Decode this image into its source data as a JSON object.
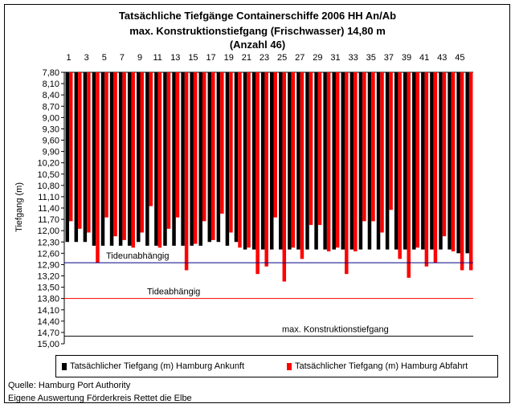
{
  "chart_data": {
    "type": "bar",
    "title_lines": [
      "Tatsächliche Tiefgänge Containerschiffe 2006 HH An/Ab",
      "max. Konstruktionstiefgang (Frischwasser) 14,80 m",
      "(Anzahl 46)"
    ],
    "ylabel": "Tiefgang (m)",
    "ylim": [
      7.8,
      15.0
    ],
    "y_inverted": true,
    "yticks": [
      "7,80",
      "8,10",
      "8,40",
      "8,70",
      "9,00",
      "9,30",
      "9,60",
      "9,90",
      "10,20",
      "10,50",
      "10,80",
      "11,10",
      "11,40",
      "11,70",
      "12,00",
      "12,30",
      "12,60",
      "12,90",
      "13,20",
      "13,50",
      "13,80",
      "14,10",
      "14,40",
      "14,70",
      "15,00"
    ],
    "ytick_values": [
      7.8,
      8.1,
      8.4,
      8.7,
      9.0,
      9.3,
      9.6,
      9.9,
      10.2,
      10.5,
      10.8,
      11.1,
      11.4,
      11.7,
      12.0,
      12.3,
      12.6,
      12.9,
      13.2,
      13.5,
      13.8,
      14.1,
      14.4,
      14.7,
      15.0
    ],
    "categories": [
      "1",
      "2",
      "3",
      "4",
      "5",
      "6",
      "7",
      "8",
      "9",
      "10",
      "11",
      "12",
      "13",
      "14",
      "15",
      "16",
      "17",
      "18",
      "19",
      "20",
      "21",
      "22",
      "23",
      "24",
      "25",
      "26",
      "27",
      "28",
      "29",
      "30",
      "31",
      "32",
      "33",
      "34",
      "35",
      "36",
      "37",
      "38",
      "39",
      "40",
      "41",
      "42",
      "43",
      "44",
      "45",
      "46"
    ],
    "xtick_labels": [
      "1",
      "3",
      "5",
      "7",
      "9",
      "11",
      "13",
      "15",
      "17",
      "19",
      "21",
      "23",
      "25",
      "27",
      "29",
      "31",
      "33",
      "35",
      "37",
      "39",
      "41",
      "43",
      "45"
    ],
    "series": [
      {
        "name": "Tatsächlicher Tiefgang (m) Hamburg Ankunft",
        "color": "#000000",
        "values": [
          12.3,
          12.3,
          12.3,
          12.4,
          12.4,
          12.4,
          12.4,
          12.4,
          12.3,
          12.4,
          12.4,
          12.4,
          12.4,
          12.4,
          12.4,
          12.4,
          12.3,
          12.3,
          12.4,
          12.3,
          12.5,
          12.5,
          12.5,
          12.5,
          12.5,
          12.5,
          12.5,
          12.5,
          12.5,
          12.5,
          12.5,
          12.5,
          12.5,
          12.5,
          12.5,
          12.5,
          12.5,
          12.5,
          12.5,
          12.5,
          12.5,
          12.5,
          12.5,
          12.5,
          12.6,
          12.6
        ]
      },
      {
        "name": "Tatsächlicher Tiefgang (m) Hamburg Abfahrt",
        "color": "#ff0000",
        "values": [
          11.75,
          11.95,
          12.05,
          12.85,
          11.65,
          12.15,
          12.25,
          12.45,
          12.05,
          11.35,
          12.45,
          11.95,
          11.65,
          13.05,
          12.35,
          11.75,
          12.25,
          11.55,
          12.05,
          12.45,
          12.45,
          13.15,
          12.95,
          11.65,
          13.35,
          12.45,
          12.75,
          11.85,
          11.85,
          12.55,
          12.45,
          13.15,
          12.55,
          11.75,
          11.75,
          12.05,
          11.45,
          12.75,
          13.25,
          12.45,
          12.95,
          12.85,
          12.15,
          12.55,
          13.05,
          13.05
        ]
      }
    ],
    "reference_lines": [
      {
        "label": "Tideunabhängig",
        "value": 12.85,
        "color": "#000080"
      },
      {
        "label": "Tideabhängig",
        "value": 13.8,
        "color": "#ff0000"
      },
      {
        "label": "max. Konstruktionstiefgang",
        "value": 14.8,
        "color": "#000000"
      }
    ],
    "grid": false,
    "legend_position": "bottom"
  },
  "footer": {
    "source": "Quelle: Hamburg Port Authority",
    "analysis": "Eigene Auswertung Förderkreis Rettet die Elbe"
  }
}
